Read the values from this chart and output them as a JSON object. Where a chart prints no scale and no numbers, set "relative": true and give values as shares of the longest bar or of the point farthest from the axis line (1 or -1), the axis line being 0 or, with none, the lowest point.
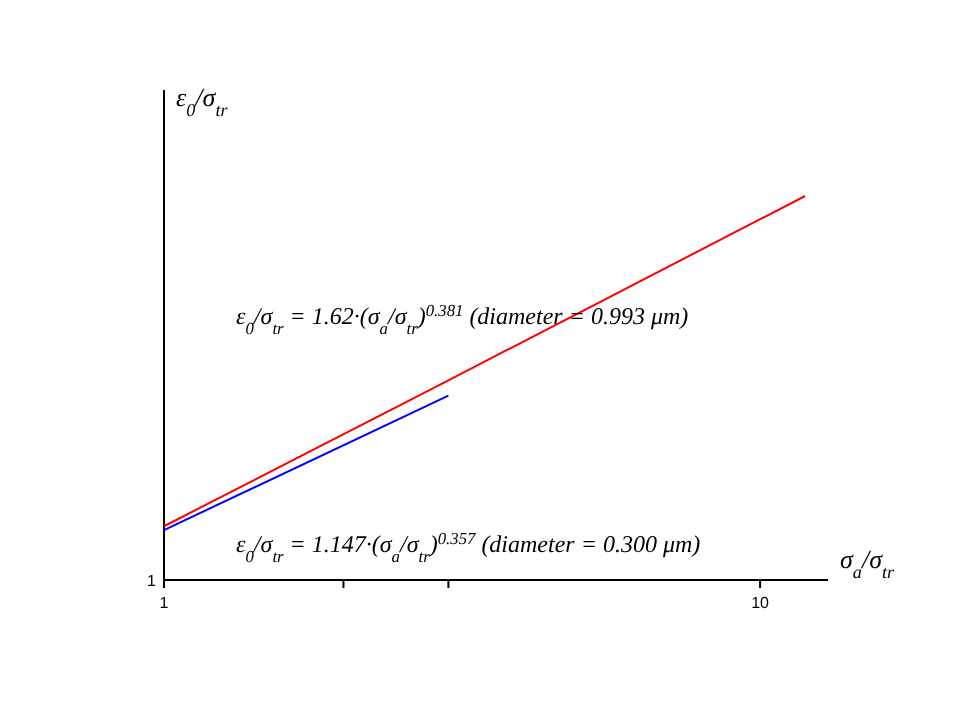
{
  "chart_data": {
    "type": "line",
    "xlabel": "σ$_{a}$/σ$_{tr}$",
    "ylabel": "ε$_{0}$/σ$_{tr}$",
    "relative": true,
    "log": "x",
    "xlim": [
      1,
      13
    ],
    "xticks": [
      1,
      {
        "value": 2,
        "label": null
      },
      {
        "value": 3,
        "label": null
      },
      10
    ],
    "grid": false,
    "series": [
      {
        "color": "#ff0000",
        "x": [
          1,
          3,
          11.9
        ],
        "values": [
          0.14,
          0.52,
          1
        ]
      },
      {
        "color": "#0000ff",
        "x": [
          1,
          3
        ],
        "values": [
          0.13,
          0.48
        ]
      }
    ],
    "annotations": [
      "1",
      "ε$_{0}$/σ$_{tr}$ = 1.62·(σ$_{a}$/σ$_{tr}$)$^{0.381}$    (diameter = 0.993 μm)",
      "ε$_{0}$/σ$_{tr}$ = 1.147·(σ$_{a}$/σ$_{tr}$)$^{0.357}$    (diameter = 0.300 μm)"
    ]
  }
}
